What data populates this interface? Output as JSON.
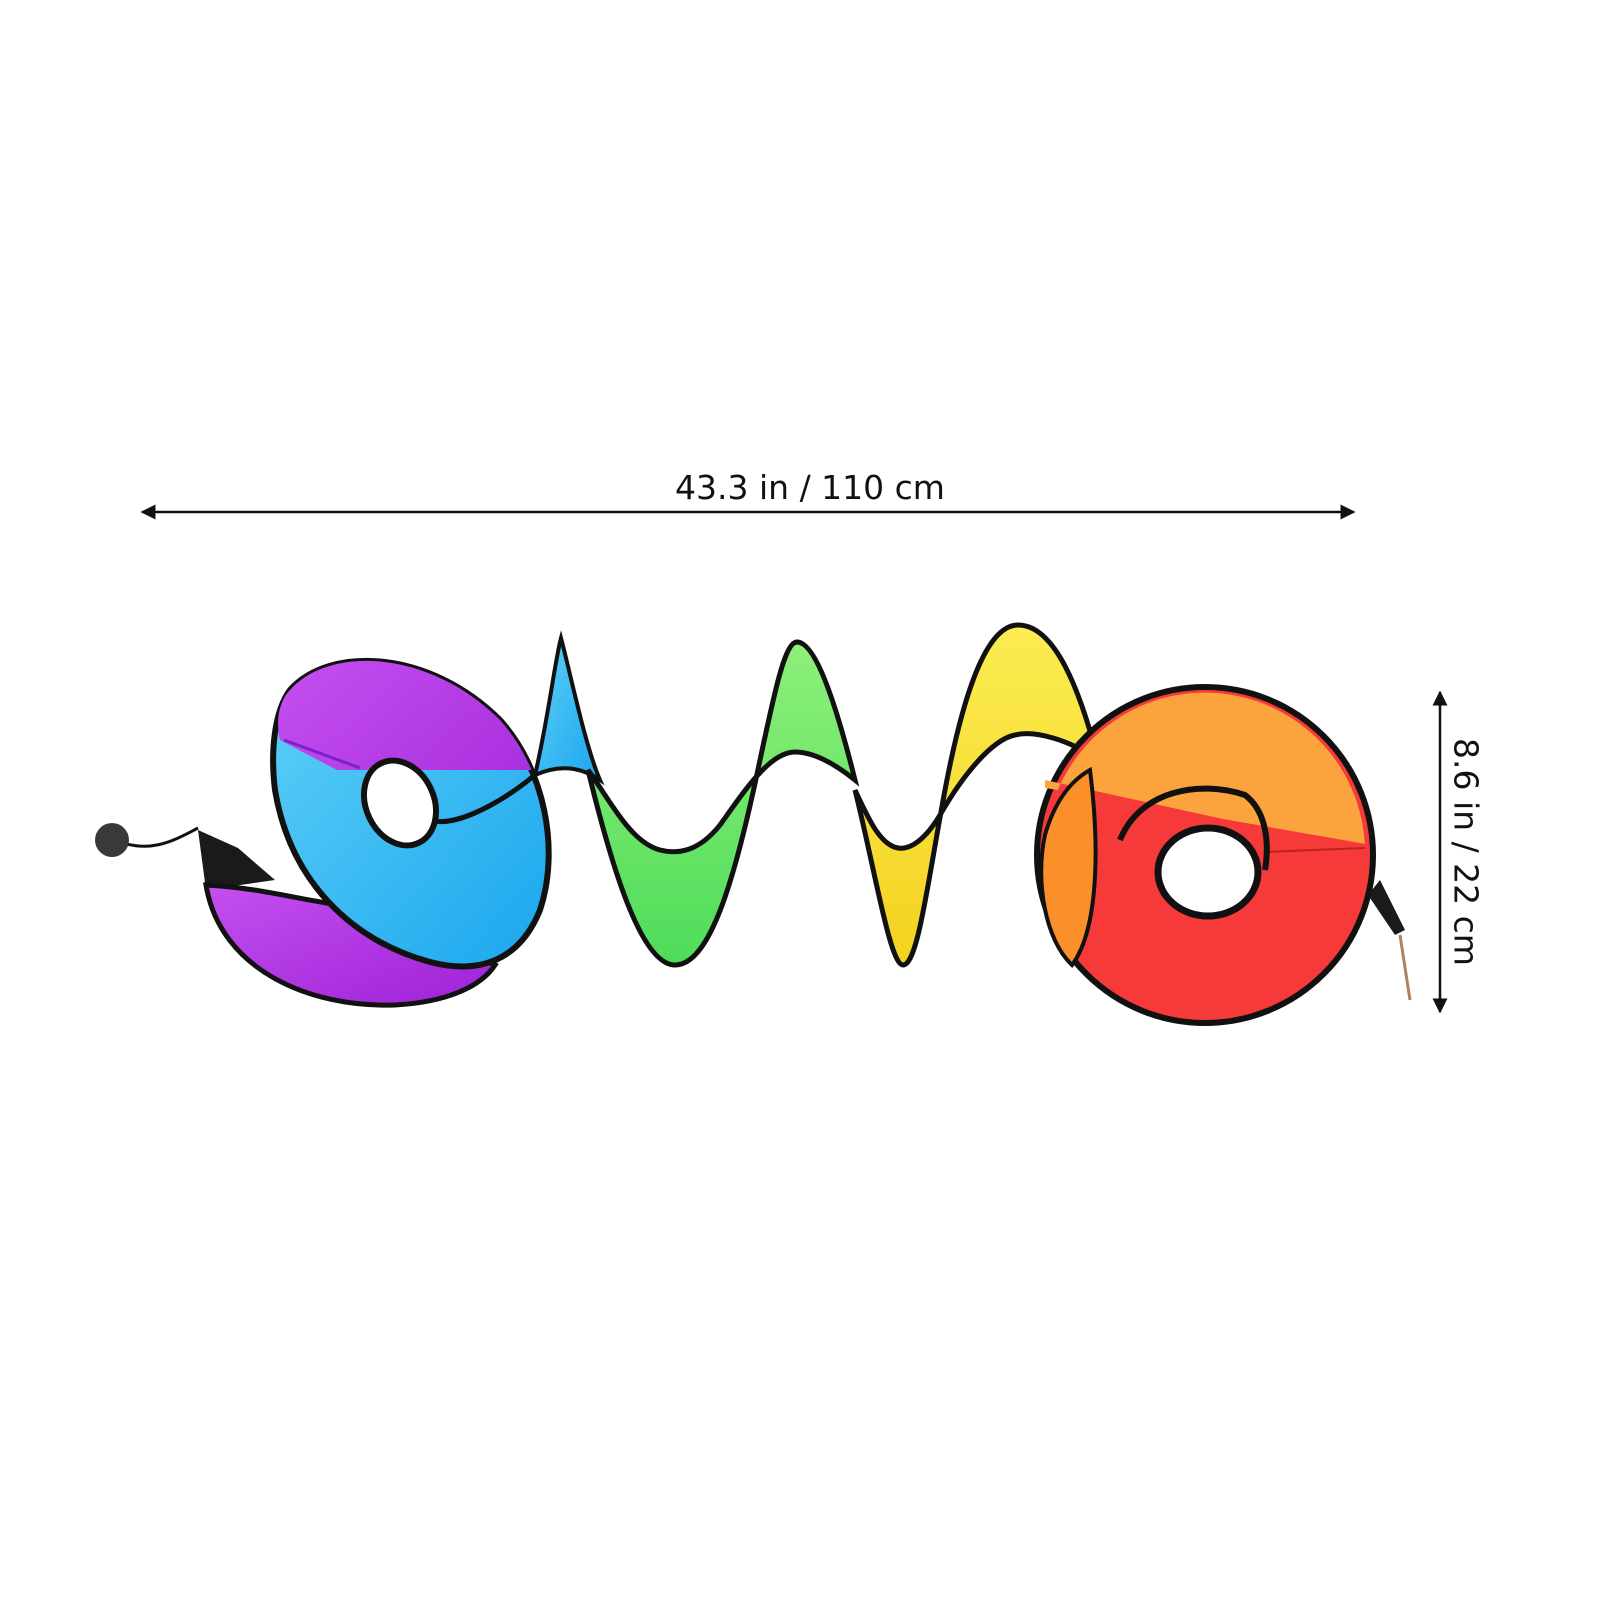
{
  "product": {
    "description_visible": "",
    "colors": {
      "purple": "#b02fe0",
      "blue": "#3cbcf4",
      "green": "#6fe86a",
      "yellow": "#f9e23a",
      "orange": "#fba43e",
      "red": "#f63a3a",
      "outline": "#111111"
    }
  },
  "dimensions": {
    "width_label": "43.3 in / 110 cm",
    "height_label": "8.6 in / 22 cm"
  }
}
